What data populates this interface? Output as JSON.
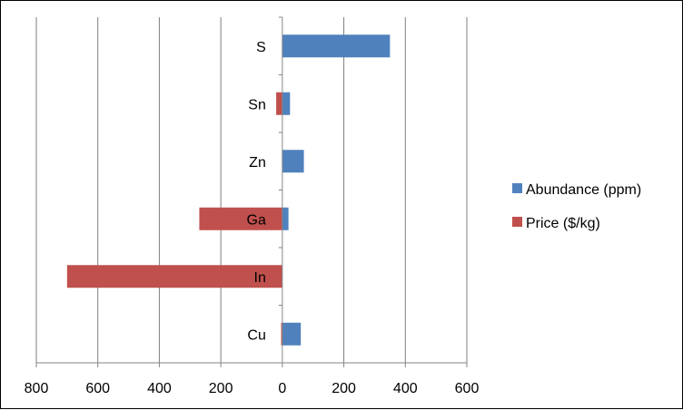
{
  "chart_data": {
    "type": "bar",
    "orientation": "horizontal",
    "stacked": "diverging",
    "categories": [
      "S",
      "Sn",
      "Zn",
      "Ga",
      "In",
      "Cu"
    ],
    "series": [
      {
        "name": "Abundance (ppm)",
        "values": [
          350,
          25,
          70,
          20,
          0,
          60
        ],
        "color": "#4F81BD",
        "direction": "positive"
      },
      {
        "name": "Price ($/kg)",
        "values": [
          0,
          20,
          0,
          270,
          700,
          4
        ],
        "color": "#C0504D",
        "direction": "negative"
      }
    ],
    "x_axis": {
      "min": -800,
      "max": 600,
      "ticks": [
        -800,
        -600,
        -400,
        -200,
        0,
        200,
        400,
        600
      ],
      "tick_labels": [
        "800",
        "600",
        "400",
        "200",
        "0",
        "200",
        "400",
        "600"
      ]
    },
    "grid": "vertical",
    "legend": "right",
    "title": "",
    "xlabel": "",
    "ylabel": ""
  }
}
